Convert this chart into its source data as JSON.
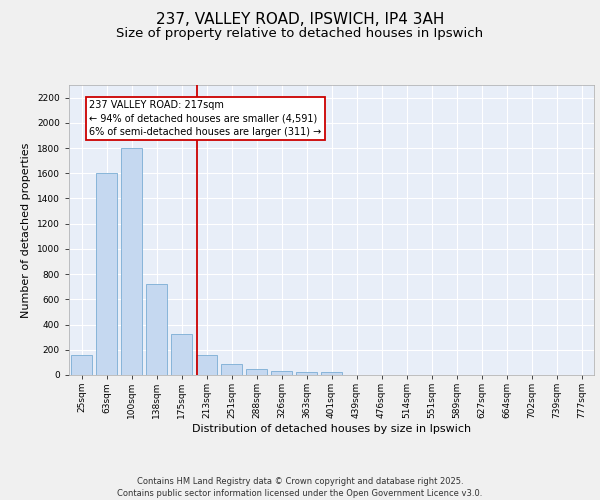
{
  "title_line1": "237, VALLEY ROAD, IPSWICH, IP4 3AH",
  "title_line2": "Size of property relative to detached houses in Ipswich",
  "xlabel": "Distribution of detached houses by size in Ipswich",
  "ylabel": "Number of detached properties",
  "categories": [
    "25sqm",
    "63sqm",
    "100sqm",
    "138sqm",
    "175sqm",
    "213sqm",
    "251sqm",
    "288sqm",
    "326sqm",
    "363sqm",
    "401sqm",
    "439sqm",
    "476sqm",
    "514sqm",
    "551sqm",
    "589sqm",
    "627sqm",
    "664sqm",
    "702sqm",
    "739sqm",
    "777sqm"
  ],
  "values": [
    160,
    1600,
    1800,
    725,
    325,
    160,
    90,
    50,
    30,
    20,
    20,
    0,
    0,
    0,
    0,
    0,
    0,
    0,
    0,
    0,
    0
  ],
  "bar_color": "#c5d8f0",
  "bar_edge_color": "#7aadd4",
  "vline_color": "#cc0000",
  "vline_x": 4.6,
  "annotation_text": "237 VALLEY ROAD: 217sqm\n← 94% of detached houses are smaller (4,591)\n6% of semi-detached houses are larger (311) →",
  "annotation_box_edge_color": "#cc0000",
  "annotation_box_facecolor": "#ffffff",
  "footer_text": "Contains HM Land Registry data © Crown copyright and database right 2025.\nContains public sector information licensed under the Open Government Licence v3.0.",
  "ylim": [
    0,
    2300
  ],
  "yticks": [
    0,
    200,
    400,
    600,
    800,
    1000,
    1200,
    1400,
    1600,
    1800,
    2000,
    2200
  ],
  "plot_bg_color": "#e8eef8",
  "fig_bg_color": "#f0f0f0",
  "grid_color": "#ffffff",
  "title_fontsize": 11,
  "subtitle_fontsize": 9.5,
  "axis_label_fontsize": 8,
  "tick_fontsize": 6.5,
  "footer_fontsize": 6,
  "annotation_fontsize": 7
}
